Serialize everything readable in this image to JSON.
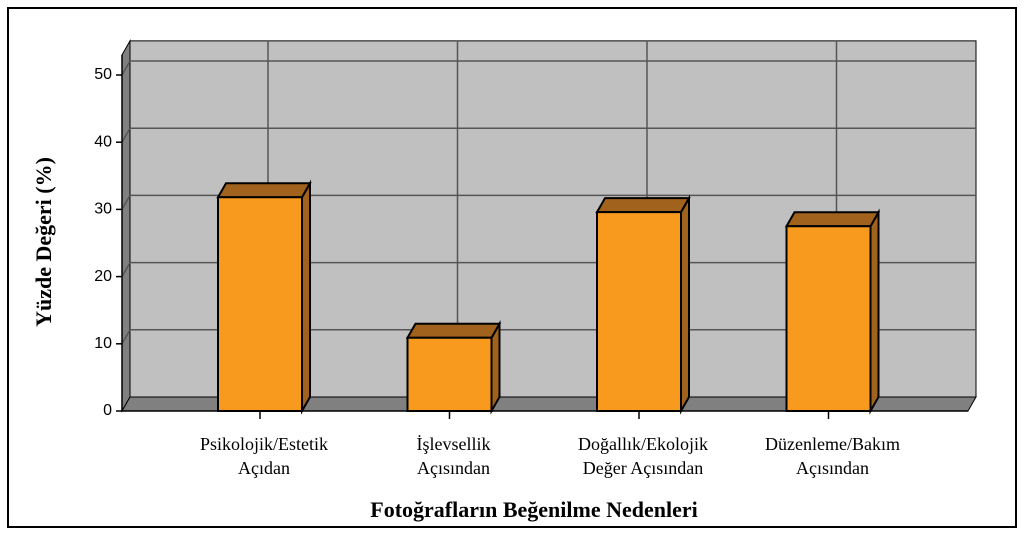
{
  "chart_data": {
    "type": "bar3d",
    "title": null,
    "x_label": "Fotoğrafların Beğenilme Nedenleri",
    "y_label": "Yüzde Değeri (%)",
    "categories": [
      [
        "Psikolojik/Estetik",
        "Açıdan"
      ],
      [
        "İşlevsellik",
        "Açısından"
      ],
      [
        "Doğallık/Ekolojik",
        "Değer Açısından"
      ],
      [
        "Düzenleme/Bakım",
        "Açısından"
      ]
    ],
    "values": [
      31.8,
      10.9,
      29.6,
      27.5
    ],
    "color": "#f89a1e",
    "shade_color": "#a0621c",
    "ylim": [
      0,
      53
    ],
    "yticks": [
      0,
      10,
      20,
      30,
      40,
      50
    ],
    "grid": true
  }
}
